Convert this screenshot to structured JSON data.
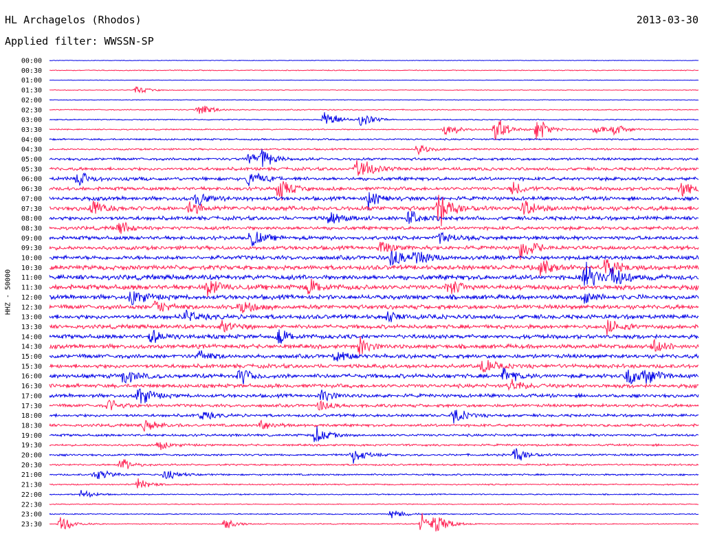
{
  "header": {
    "station": "HL Archagelos (Rhodos)",
    "date": "2013-03-30",
    "filter_label": "Applied filter:",
    "filter_value": "WWSSN-SP"
  },
  "colors": {
    "even_trace": "#0000e6",
    "odd_trace": "#ff1e50"
  },
  "chart_data": {
    "type": "line",
    "ylabel": "HHZ - 50000",
    "y_tick_labels": [
      "00:00",
      "00:30",
      "01:00",
      "01:30",
      "02:00",
      "02:30",
      "03:00",
      "03:30",
      "04:00",
      "04:30",
      "05:00",
      "05:30",
      "06:00",
      "06:30",
      "07:00",
      "07:30",
      "08:00",
      "08:30",
      "09:00",
      "09:30",
      "10:00",
      "10:30",
      "11:00",
      "11:30",
      "12:00",
      "12:30",
      "13:00",
      "13:30",
      "14:00",
      "14:30",
      "15:00",
      "15:30",
      "16:00",
      "16:30",
      "17:00",
      "17:30",
      "18:00",
      "18:30",
      "19:00",
      "19:30",
      "20:00",
      "20:30",
      "21:00",
      "21:30",
      "22:00",
      "22:30",
      "23:00",
      "23:30"
    ],
    "row_minutes": 30,
    "noise_level": [
      0.3,
      0.5,
      0.3,
      0.4,
      0.4,
      0.6,
      0.6,
      0.7,
      1.0,
      1.0,
      1.5,
      1.8,
      2.0,
      2.0,
      2.2,
      2.5,
      2.2,
      2.0,
      2.2,
      2.2,
      2.4,
      2.6,
      2.8,
      2.8,
      2.6,
      2.5,
      2.5,
      2.3,
      2.4,
      2.4,
      2.3,
      2.3,
      2.4,
      2.2,
      2.0,
      1.8,
      1.6,
      1.6,
      1.4,
      1.2,
      1.2,
      1.0,
      1.0,
      0.8,
      0.7,
      0.6,
      0.6,
      0.6
    ],
    "events": [
      {
        "row": 3,
        "minute": 4.0,
        "amp": 8
      },
      {
        "row": 5,
        "minute": 6.9,
        "amp": 14
      },
      {
        "row": 6,
        "minute": 12.7,
        "amp": 26
      },
      {
        "row": 6,
        "minute": 14.4,
        "amp": 14
      },
      {
        "row": 7,
        "minute": 18.3,
        "amp": 14
      },
      {
        "row": 7,
        "minute": 20.6,
        "amp": 26
      },
      {
        "row": 7,
        "minute": 22.5,
        "amp": 24
      },
      {
        "row": 7,
        "minute": 25.2,
        "amp": 12
      },
      {
        "row": 7,
        "minute": 26.1,
        "amp": 10
      },
      {
        "row": 9,
        "minute": 17.0,
        "amp": 10
      },
      {
        "row": 10,
        "minute": 9.2,
        "amp": 12
      },
      {
        "row": 10,
        "minute": 9.8,
        "amp": 16
      },
      {
        "row": 11,
        "minute": 14.2,
        "amp": 14
      },
      {
        "row": 11,
        "minute": 14.5,
        "amp": 12
      },
      {
        "row": 12,
        "minute": 1.3,
        "amp": 14
      },
      {
        "row": 12,
        "minute": 9.2,
        "amp": 18
      },
      {
        "row": 13,
        "minute": 10.6,
        "amp": 22
      },
      {
        "row": 13,
        "minute": 21.4,
        "amp": 12
      },
      {
        "row": 13,
        "minute": 29.2,
        "amp": 18
      },
      {
        "row": 14,
        "minute": 6.8,
        "amp": 14
      },
      {
        "row": 14,
        "minute": 14.7,
        "amp": 18
      },
      {
        "row": 15,
        "minute": 2.0,
        "amp": 16
      },
      {
        "row": 15,
        "minute": 6.5,
        "amp": 14
      },
      {
        "row": 15,
        "minute": 18.0,
        "amp": 30
      },
      {
        "row": 15,
        "minute": 21.9,
        "amp": 18
      },
      {
        "row": 16,
        "minute": 12.9,
        "amp": 14
      },
      {
        "row": 16,
        "minute": 16.6,
        "amp": 16
      },
      {
        "row": 17,
        "minute": 3.2,
        "amp": 14
      },
      {
        "row": 18,
        "minute": 9.3,
        "amp": 18
      },
      {
        "row": 18,
        "minute": 18.0,
        "amp": 14
      },
      {
        "row": 19,
        "minute": 15.3,
        "amp": 14
      },
      {
        "row": 19,
        "minute": 21.8,
        "amp": 24
      },
      {
        "row": 20,
        "minute": 15.8,
        "amp": 18
      },
      {
        "row": 20,
        "minute": 16.9,
        "amp": 16
      },
      {
        "row": 21,
        "minute": 22.7,
        "amp": 16
      },
      {
        "row": 21,
        "minute": 25.7,
        "amp": 22
      },
      {
        "row": 22,
        "minute": 24.7,
        "amp": 30
      },
      {
        "row": 22,
        "minute": 26.0,
        "amp": 22
      },
      {
        "row": 23,
        "minute": 7.3,
        "amp": 18
      },
      {
        "row": 23,
        "minute": 12.0,
        "amp": 16
      },
      {
        "row": 23,
        "minute": 18.4,
        "amp": 14
      },
      {
        "row": 24,
        "minute": 3.8,
        "amp": 18
      },
      {
        "row": 24,
        "minute": 24.7,
        "amp": 12
      },
      {
        "row": 25,
        "minute": 4.9,
        "amp": 14
      },
      {
        "row": 25,
        "minute": 8.8,
        "amp": 14
      },
      {
        "row": 26,
        "minute": 6.3,
        "amp": 12
      },
      {
        "row": 26,
        "minute": 15.6,
        "amp": 10
      },
      {
        "row": 27,
        "minute": 8.0,
        "amp": 12
      },
      {
        "row": 27,
        "minute": 25.8,
        "amp": 16
      },
      {
        "row": 28,
        "minute": 4.7,
        "amp": 12
      },
      {
        "row": 28,
        "minute": 10.6,
        "amp": 14
      },
      {
        "row": 29,
        "minute": 14.3,
        "amp": 16
      },
      {
        "row": 29,
        "minute": 27.9,
        "amp": 14
      },
      {
        "row": 30,
        "minute": 6.9,
        "amp": 10
      },
      {
        "row": 30,
        "minute": 13.2,
        "amp": 14
      },
      {
        "row": 31,
        "minute": 20.0,
        "amp": 14
      },
      {
        "row": 32,
        "minute": 3.4,
        "amp": 16
      },
      {
        "row": 32,
        "minute": 8.8,
        "amp": 16
      },
      {
        "row": 32,
        "minute": 21.0,
        "amp": 14
      },
      {
        "row": 32,
        "minute": 26.7,
        "amp": 18
      },
      {
        "row": 32,
        "minute": 27.5,
        "amp": 16
      },
      {
        "row": 33,
        "minute": 21.3,
        "amp": 14
      },
      {
        "row": 34,
        "minute": 4.1,
        "amp": 22
      },
      {
        "row": 34,
        "minute": 12.6,
        "amp": 12
      },
      {
        "row": 35,
        "minute": 2.7,
        "amp": 12
      },
      {
        "row": 35,
        "minute": 12.5,
        "amp": 10
      },
      {
        "row": 36,
        "minute": 7.0,
        "amp": 10
      },
      {
        "row": 36,
        "minute": 18.7,
        "amp": 14
      },
      {
        "row": 37,
        "minute": 4.4,
        "amp": 14
      },
      {
        "row": 37,
        "minute": 9.8,
        "amp": 12
      },
      {
        "row": 38,
        "minute": 12.3,
        "amp": 16
      },
      {
        "row": 39,
        "minute": 5.0,
        "amp": 10
      },
      {
        "row": 40,
        "minute": 14.0,
        "amp": 16
      },
      {
        "row": 40,
        "minute": 21.5,
        "amp": 14
      },
      {
        "row": 41,
        "minute": 3.3,
        "amp": 12
      },
      {
        "row": 42,
        "minute": 2.1,
        "amp": 14
      },
      {
        "row": 42,
        "minute": 5.3,
        "amp": 10
      },
      {
        "row": 43,
        "minute": 4.1,
        "amp": 10
      },
      {
        "row": 44,
        "minute": 1.5,
        "amp": 10
      },
      {
        "row": 46,
        "minute": 15.8,
        "amp": 10
      },
      {
        "row": 47,
        "minute": 0.5,
        "amp": 16
      },
      {
        "row": 47,
        "minute": 8.1,
        "amp": 10
      },
      {
        "row": 47,
        "minute": 17.2,
        "amp": 22
      },
      {
        "row": 47,
        "minute": 17.8,
        "amp": 18
      }
    ]
  }
}
